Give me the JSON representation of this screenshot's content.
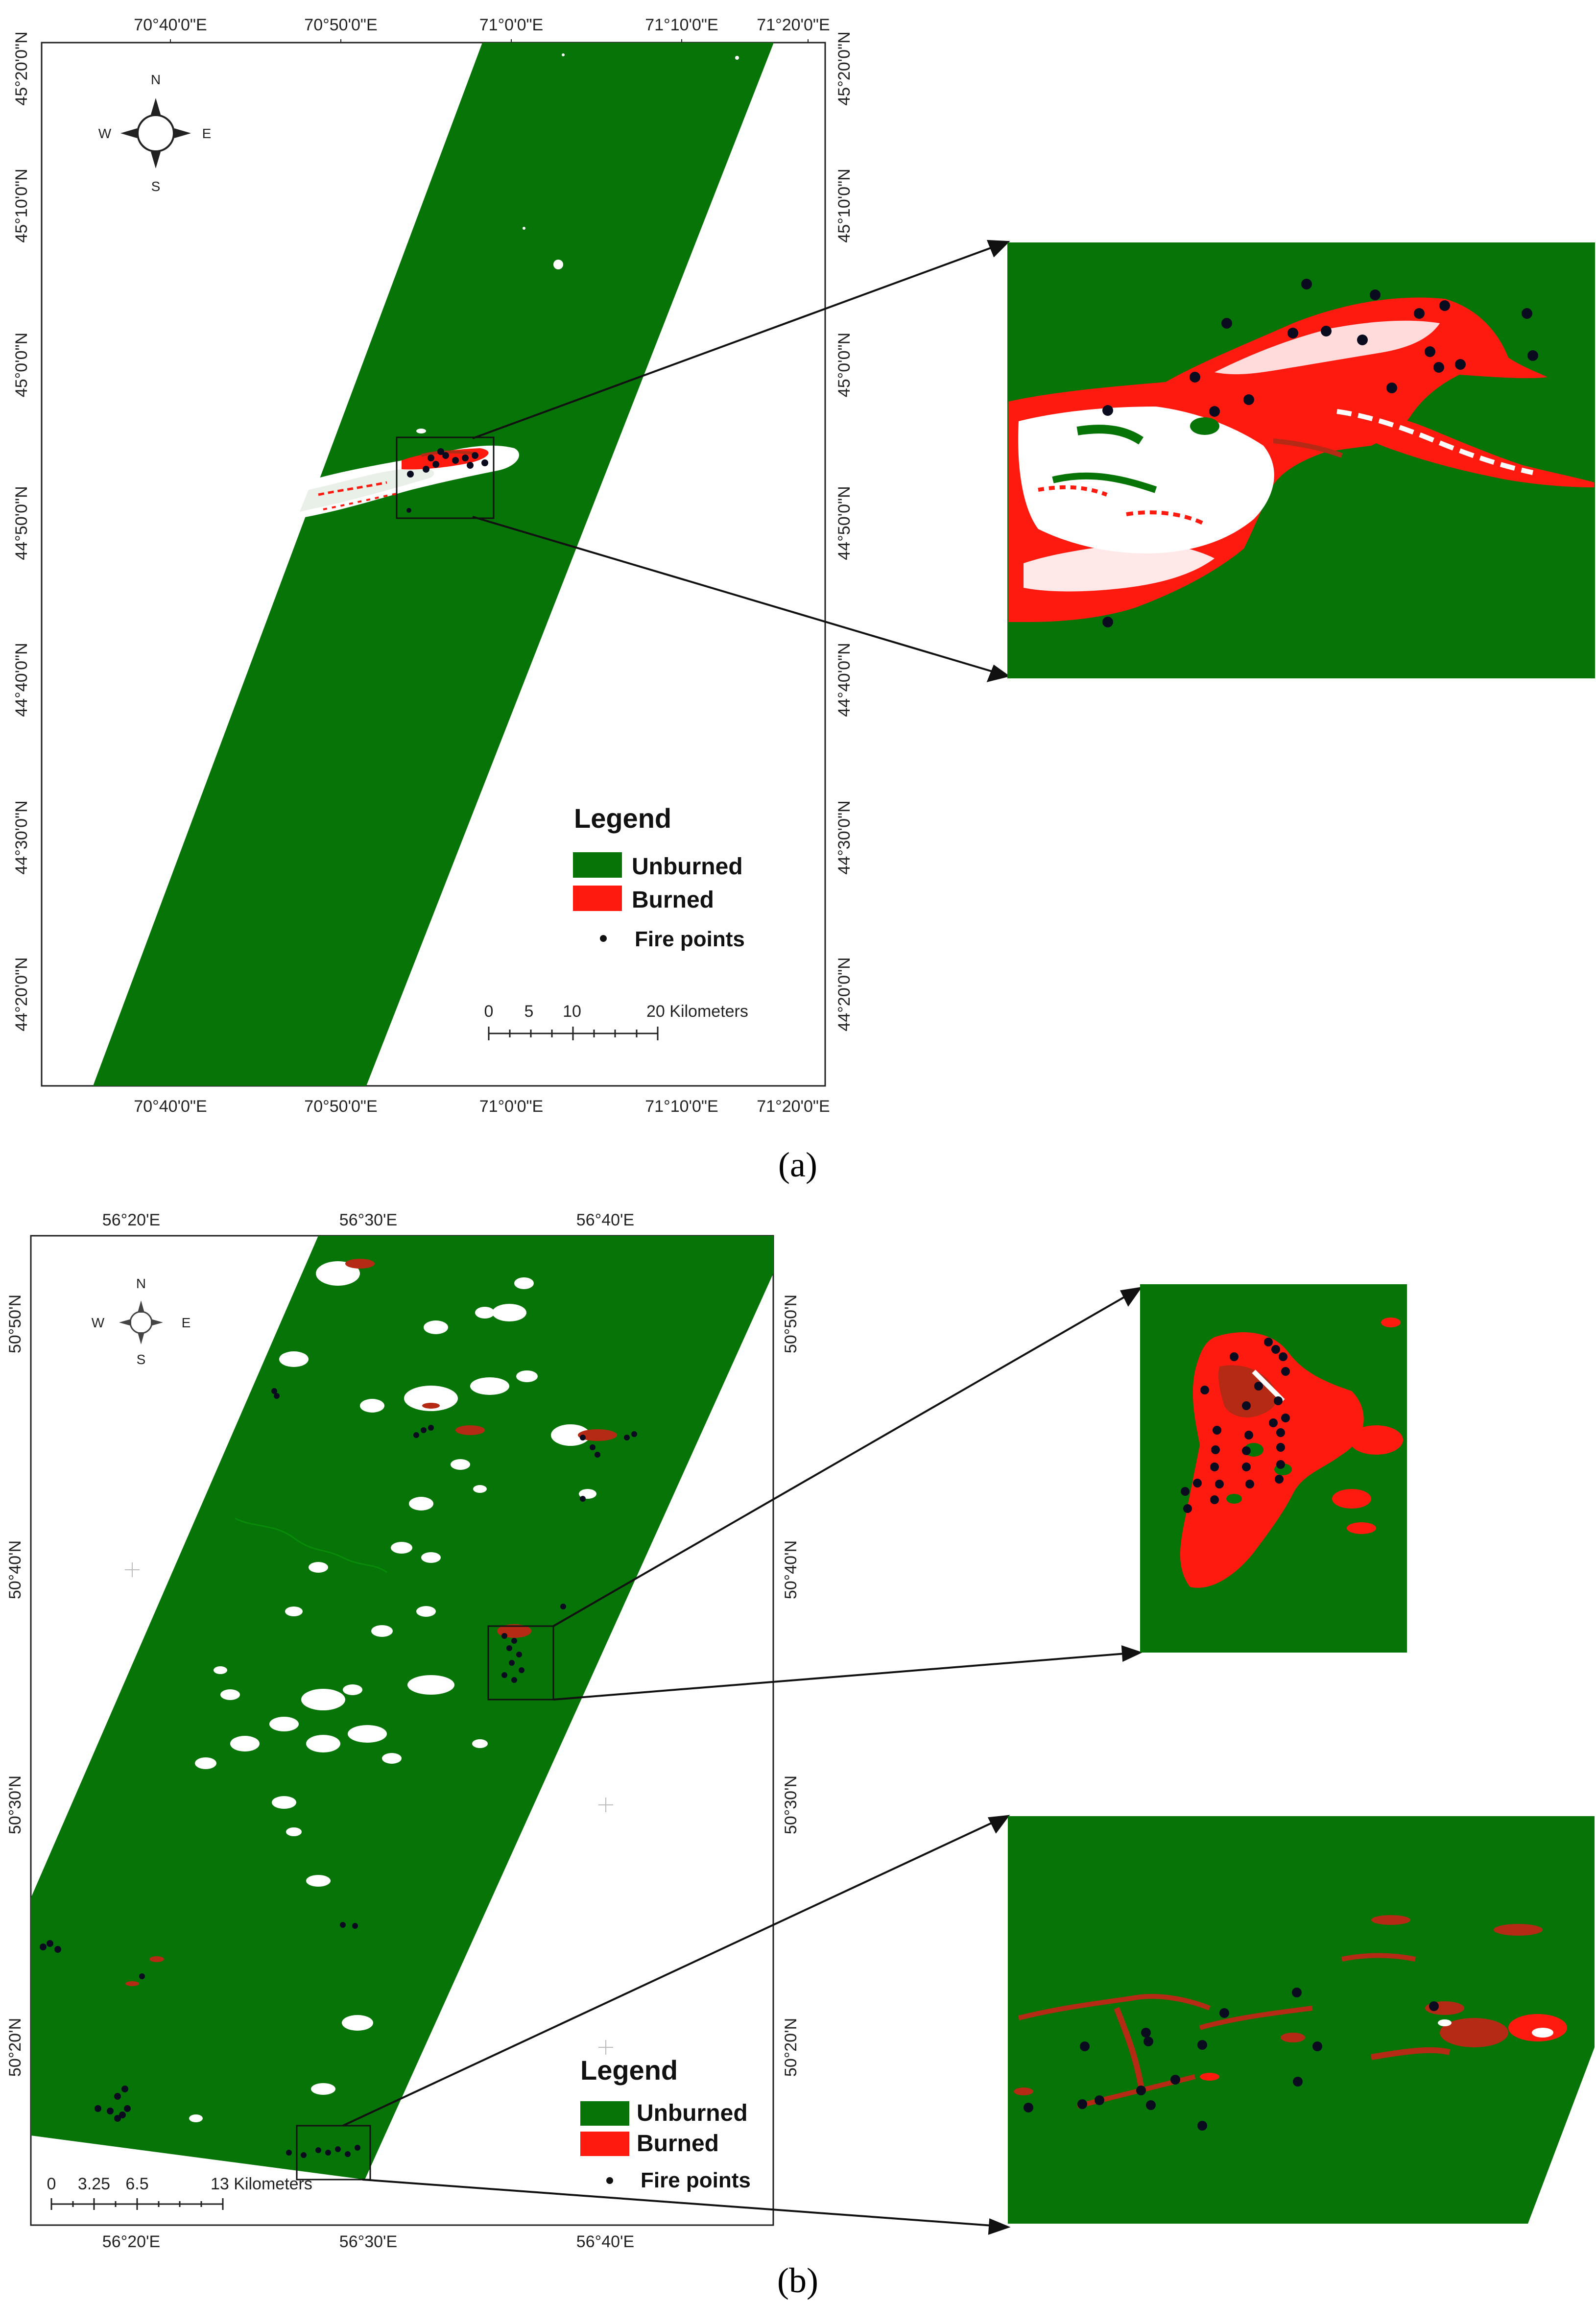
{
  "colors": {
    "unburned": "#067406",
    "burned": "#ff1a10",
    "burned_dark": "#b42a14",
    "snow": "#ffffff",
    "fire": "#0b0b20",
    "frame": "#222222"
  },
  "panel_a": {
    "caption": "(a)",
    "top_ticks": [
      "70°40'0\"E",
      "70°50'0\"E",
      "71°0'0\"E",
      "71°10'0\"E",
      "71°20'0\"E"
    ],
    "bottom_ticks": [
      "70°40'0\"E",
      "70°50'0\"E",
      "71°0'0\"E",
      "71°10'0\"E",
      "71°20'0\"E"
    ],
    "left_ticks": [
      "45°20'0\"N",
      "45°10'0\"N",
      "45°0'0\"N",
      "44°50'0\"N",
      "44°40'0\"N",
      "44°30'0\"N",
      "44°20'0\"N"
    ],
    "right_ticks": [
      "45°20'0\"N",
      "45°10'0\"N",
      "45°0'0\"N",
      "44°50'0\"N",
      "44°40'0\"N",
      "44°30'0\"N",
      "44°20'0\"N"
    ],
    "compass": {
      "n": "N",
      "s": "S",
      "e": "E",
      "w": "W"
    },
    "legend": {
      "title": "Legend",
      "unburned": "Unburned",
      "burned": "Burned",
      "fire": "Fire points"
    },
    "scale": {
      "labels": [
        "0",
        "5",
        "10",
        "20 Kilometers"
      ]
    }
  },
  "panel_b": {
    "caption": "(b)",
    "top_ticks": [
      "56°20'E",
      "56°30'E",
      "56°40'E"
    ],
    "bottom_ticks": [
      "56°20'E",
      "56°30'E",
      "56°40'E"
    ],
    "left_ticks": [
      "50°50'N",
      "50°40'N",
      "50°30'N",
      "50°20'N"
    ],
    "right_ticks": [
      "50°50'N",
      "50°40'N",
      "50°30'N",
      "50°20'N"
    ],
    "compass": {
      "n": "N",
      "s": "S",
      "e": "E",
      "w": "W"
    },
    "legend": {
      "title": "Legend",
      "unburned": "Unburned",
      "burned": "Burned",
      "fire": "Fire points"
    },
    "scale": {
      "labels": [
        "0",
        "3.25",
        "6.5",
        "13 Kilometers"
      ]
    }
  }
}
